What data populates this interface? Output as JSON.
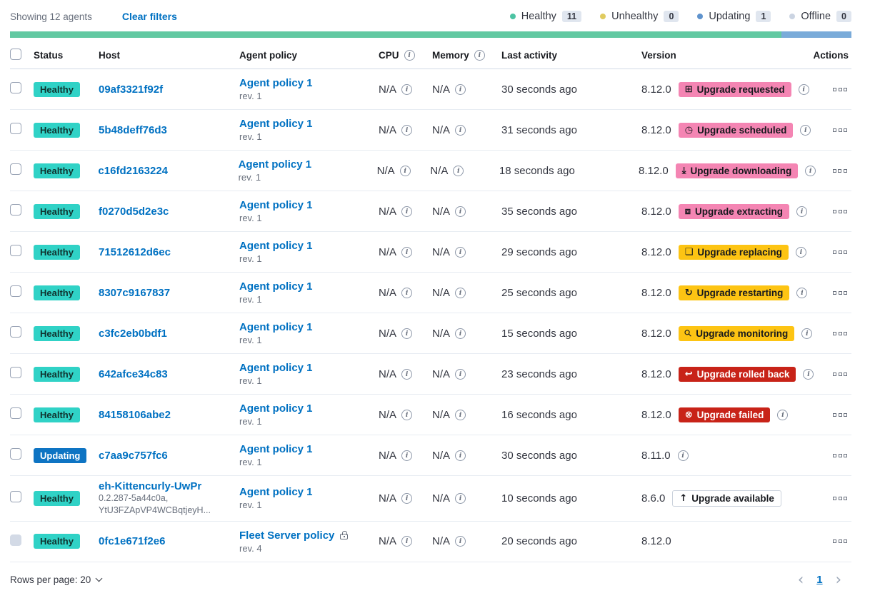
{
  "toolbar": {
    "showing": "Showing 12 agents",
    "clear_filters": "Clear filters",
    "legend": [
      {
        "label": "Healthy",
        "count": "11",
        "color": "#4CC3A3"
      },
      {
        "label": "Unhealthy",
        "count": "0",
        "color": "#E0CB5F"
      },
      {
        "label": "Updating",
        "count": "1",
        "color": "#5F93CD"
      },
      {
        "label": "Offline",
        "count": "0",
        "color": "#CBD4E2"
      }
    ],
    "health_bar": {
      "healthy_pct": 91.67,
      "updating_pct": 8.33,
      "healthy_color": "#62C9A2",
      "updating_color": "#7AABD9"
    }
  },
  "icons": {
    "info_glyph": "i"
  },
  "table": {
    "headers": {
      "status": "Status",
      "host": "Host",
      "policy": "Agent policy",
      "cpu": "CPU",
      "memory": "Memory",
      "activity": "Last activity",
      "version": "Version",
      "actions": "Actions"
    },
    "rows": [
      {
        "status": {
          "label": "Healthy",
          "variant": "healthy"
        },
        "host": {
          "name": "09af3321f92f",
          "sub1": "",
          "sub2": ""
        },
        "policy": {
          "name": "Agent policy 1",
          "rev": "rev. 1",
          "lock": ""
        },
        "cpu": "N/A",
        "memory": "N/A",
        "activity": "30 seconds ago",
        "version": "8.12.0",
        "version_info": "1",
        "checkbox_disabled": "",
        "upgrade": {
          "label": "Upgrade requested",
          "icon": "⊞",
          "icon_mod": "",
          "variant": "pink"
        }
      },
      {
        "status": {
          "label": "Healthy",
          "variant": "healthy"
        },
        "host": {
          "name": "5b48deff76d3",
          "sub1": "",
          "sub2": ""
        },
        "policy": {
          "name": "Agent policy 1",
          "rev": "rev. 1",
          "lock": ""
        },
        "cpu": "N/A",
        "memory": "N/A",
        "activity": "31 seconds ago",
        "version": "8.12.0",
        "version_info": "1",
        "checkbox_disabled": "",
        "upgrade": {
          "label": "Upgrade scheduled",
          "icon": "◷",
          "icon_mod": "",
          "variant": "pink"
        }
      },
      {
        "status": {
          "label": "Healthy",
          "variant": "healthy"
        },
        "host": {
          "name": "c16fd2163224",
          "sub1": "",
          "sub2": ""
        },
        "policy": {
          "name": "Agent policy 1",
          "rev": "rev. 1",
          "lock": ""
        },
        "cpu": "N/A",
        "memory": "N/A",
        "activity": "18 seconds ago",
        "version": "8.12.0",
        "version_info": "1",
        "checkbox_disabled": "",
        "upgrade": {
          "label": "Upgrade downloading",
          "icon": "⤓",
          "icon_mod": "",
          "variant": "pink"
        }
      },
      {
        "status": {
          "label": "Healthy",
          "variant": "healthy"
        },
        "host": {
          "name": "f0270d5d2e3c",
          "sub1": "",
          "sub2": ""
        },
        "policy": {
          "name": "Agent policy 1",
          "rev": "rev. 1",
          "lock": ""
        },
        "cpu": "N/A",
        "memory": "N/A",
        "activity": "35 seconds ago",
        "version": "8.12.0",
        "version_info": "1",
        "checkbox_disabled": "",
        "upgrade": {
          "label": "Upgrade extracting",
          "icon": "⧈",
          "icon_mod": "",
          "variant": "pink"
        }
      },
      {
        "status": {
          "label": "Healthy",
          "variant": "healthy"
        },
        "host": {
          "name": "71512612d6ec",
          "sub1": "",
          "sub2": ""
        },
        "policy": {
          "name": "Agent policy 1",
          "rev": "rev. 1",
          "lock": ""
        },
        "cpu": "N/A",
        "memory": "N/A",
        "activity": "29 seconds ago",
        "version": "8.12.0",
        "version_info": "1",
        "checkbox_disabled": "",
        "upgrade": {
          "label": "Upgrade replacing",
          "icon": "❏",
          "icon_mod": "",
          "variant": "yellow"
        }
      },
      {
        "status": {
          "label": "Healthy",
          "variant": "healthy"
        },
        "host": {
          "name": "8307c9167837",
          "sub1": "",
          "sub2": ""
        },
        "policy": {
          "name": "Agent policy 1",
          "rev": "rev. 1",
          "lock": ""
        },
        "cpu": "N/A",
        "memory": "N/A",
        "activity": "25 seconds ago",
        "version": "8.12.0",
        "version_info": "1",
        "checkbox_disabled": "",
        "upgrade": {
          "label": "Upgrade restarting",
          "icon": "↻",
          "icon_mod": "",
          "variant": "yellow"
        }
      },
      {
        "status": {
          "label": "Healthy",
          "variant": "healthy"
        },
        "host": {
          "name": "c3fc2eb0bdf1",
          "sub1": "",
          "sub2": ""
        },
        "policy": {
          "name": "Agent policy 1",
          "rev": "rev. 1",
          "lock": ""
        },
        "cpu": "N/A",
        "memory": "N/A",
        "activity": "15 seconds ago",
        "version": "8.12.0",
        "version_info": "1",
        "checkbox_disabled": "",
        "upgrade": {
          "label": "Upgrade monitoring",
          "icon": "⚲",
          "icon_mod": "rot",
          "variant": "yellow"
        }
      },
      {
        "status": {
          "label": "Healthy",
          "variant": "healthy"
        },
        "host": {
          "name": "642afce34c83",
          "sub1": "",
          "sub2": ""
        },
        "policy": {
          "name": "Agent policy 1",
          "rev": "rev. 1",
          "lock": ""
        },
        "cpu": "N/A",
        "memory": "N/A",
        "activity": "23 seconds ago",
        "version": "8.12.0",
        "version_info": "1",
        "checkbox_disabled": "",
        "upgrade": {
          "label": "Upgrade rolled back",
          "icon": "↩",
          "icon_mod": "",
          "variant": "red"
        }
      },
      {
        "status": {
          "label": "Healthy",
          "variant": "healthy"
        },
        "host": {
          "name": "84158106abe2",
          "sub1": "",
          "sub2": ""
        },
        "policy": {
          "name": "Agent policy 1",
          "rev": "rev. 1",
          "lock": ""
        },
        "cpu": "N/A",
        "memory": "N/A",
        "activity": "16 seconds ago",
        "version": "8.12.0",
        "version_info": "1",
        "checkbox_disabled": "",
        "upgrade": {
          "label": "Upgrade failed",
          "icon": "⊗",
          "icon_mod": "",
          "variant": "red"
        }
      },
      {
        "status": {
          "label": "Updating",
          "variant": "updating"
        },
        "host": {
          "name": "c7aa9c757fc6",
          "sub1": "",
          "sub2": ""
        },
        "policy": {
          "name": "Agent policy 1",
          "rev": "rev. 1",
          "lock": ""
        },
        "cpu": "N/A",
        "memory": "N/A",
        "activity": "30 seconds ago",
        "version": "8.11.0",
        "version_info": "1",
        "checkbox_disabled": "",
        "upgrade": {
          "label": "",
          "icon": "",
          "icon_mod": "",
          "variant": ""
        }
      },
      {
        "status": {
          "label": "Healthy",
          "variant": "healthy"
        },
        "host": {
          "name": "eh-Kittencurly-UwPr",
          "sub1": "0.2.287-5a44c0a,",
          "sub2": "YtU3FZApVP4WCBqtjeyH..."
        },
        "policy": {
          "name": "Agent policy 1",
          "rev": "rev. 1",
          "lock": ""
        },
        "cpu": "N/A",
        "memory": "N/A",
        "activity": "10 seconds ago",
        "version": "8.6.0",
        "version_info": "",
        "checkbox_disabled": "",
        "upgrade": {
          "label": "Upgrade available",
          "icon": "↑",
          "icon_mod": "",
          "variant": "hollow"
        }
      },
      {
        "status": {
          "label": "Healthy",
          "variant": "healthy"
        },
        "host": {
          "name": "0fc1e671f2e6",
          "sub1": "",
          "sub2": ""
        },
        "policy": {
          "name": "Fleet Server policy",
          "rev": "rev. 4",
          "lock": "1"
        },
        "cpu": "N/A",
        "memory": "N/A",
        "activity": "20 seconds ago",
        "version": "8.12.0",
        "version_info": "",
        "checkbox_disabled": "1",
        "upgrade": {
          "label": "",
          "icon": "",
          "icon_mod": "",
          "variant": ""
        }
      }
    ]
  },
  "footer": {
    "rows_per_page": "Rows per page: 20",
    "page": "1",
    "prev": "‹",
    "next": "›"
  }
}
